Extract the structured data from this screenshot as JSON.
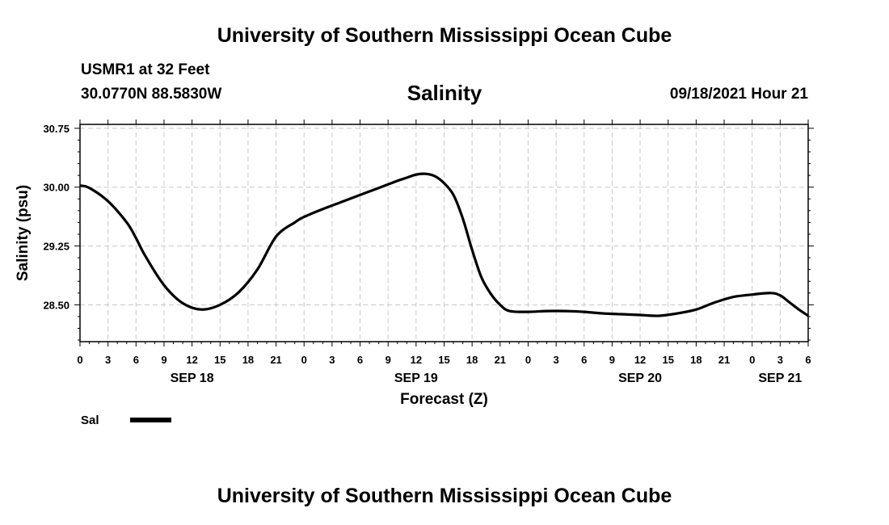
{
  "header": {
    "title_top": "University of Southern Mississippi Ocean Cube",
    "title_bottom": "University of Southern Mississippi Ocean Cube",
    "station": "USMR1 at 32 Feet",
    "coords": "30.0770N  88.5830W",
    "datetime": "09/18/2021 Hour 21"
  },
  "legend": {
    "label": "Sal",
    "color": "#000000"
  },
  "chart_data": {
    "type": "line",
    "title": "Salinity",
    "xlabel": "Forecast (Z)",
    "ylabel": "Salinity (psu)",
    "ylim": [
      28.03,
      30.8
    ],
    "xlim": [
      0,
      78
    ],
    "grid": true,
    "y_ticks": [
      28.5,
      29.25,
      30.0,
      30.75
    ],
    "y_tick_labels": [
      "28.50",
      "29.25",
      "30.00",
      "30.75"
    ],
    "x_ticks": [
      0,
      3,
      6,
      9,
      12,
      15,
      18,
      21,
      24,
      27,
      30,
      33,
      36,
      39,
      42,
      45,
      48,
      51,
      54,
      57,
      60,
      63,
      66,
      69,
      72,
      75,
      78
    ],
    "x_tick_labels": [
      "0",
      "3",
      "6",
      "9",
      "12",
      "15",
      "18",
      "21",
      "0",
      "3",
      "6",
      "9",
      "12",
      "15",
      "18",
      "21",
      "0",
      "3",
      "6",
      "9",
      "12",
      "15",
      "18",
      "21",
      "0",
      "3",
      "6"
    ],
    "date_labels": [
      {
        "text": "SEP 18",
        "x": 12
      },
      {
        "text": "SEP 19",
        "x": 36
      },
      {
        "text": "SEP 20",
        "x": 60
      },
      {
        "text": "SEP 21",
        "x": 75
      }
    ],
    "series": [
      {
        "name": "Sal",
        "x": [
          0,
          1,
          3,
          5,
          6,
          7,
          9,
          11,
          13,
          15,
          17,
          19,
          21,
          23,
          24,
          26,
          28,
          30,
          32,
          34,
          35,
          36,
          37,
          38,
          39,
          40,
          41,
          42,
          43,
          44,
          45,
          46,
          48,
          50,
          52,
          54,
          56,
          58,
          60,
          62,
          64,
          66,
          68,
          70,
          72,
          74,
          75,
          76,
          77,
          78
        ],
        "y": [
          30.02,
          29.99,
          29.82,
          29.55,
          29.35,
          29.12,
          28.75,
          28.52,
          28.44,
          28.5,
          28.66,
          28.95,
          29.37,
          29.55,
          29.62,
          29.72,
          29.81,
          29.9,
          29.99,
          30.08,
          30.12,
          30.16,
          30.17,
          30.14,
          30.05,
          29.9,
          29.6,
          29.2,
          28.85,
          28.64,
          28.5,
          28.42,
          28.41,
          28.42,
          28.42,
          28.41,
          28.39,
          28.38,
          28.37,
          28.36,
          28.39,
          28.44,
          28.53,
          28.6,
          28.63,
          28.65,
          28.62,
          28.53,
          28.44,
          28.36
        ]
      }
    ]
  }
}
